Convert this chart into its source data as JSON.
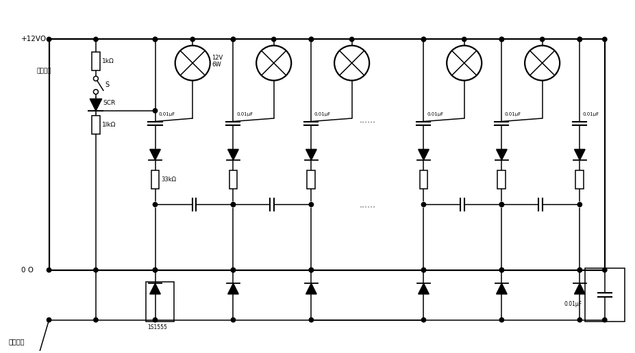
{
  "fig_width": 9.27,
  "fig_height": 5.16,
  "dpi": 100,
  "bg_color": "#ffffff",
  "line_color": "#000000",
  "labels": {
    "vcc": "+12VO",
    "gnd": "0 O",
    "trigger": "触发输入",
    "start_switch": "启动开关",
    "s_label": "S",
    "scr_label": "SCR",
    "r1": "1kΩ",
    "r2": "1lkΩ",
    "r3": "33kΩ",
    "lamp_label": "12V\n6W",
    "ic_label": "1S1555",
    "cap_label": "0.01μF",
    "dots": "......",
    "dots2": "......"
  }
}
